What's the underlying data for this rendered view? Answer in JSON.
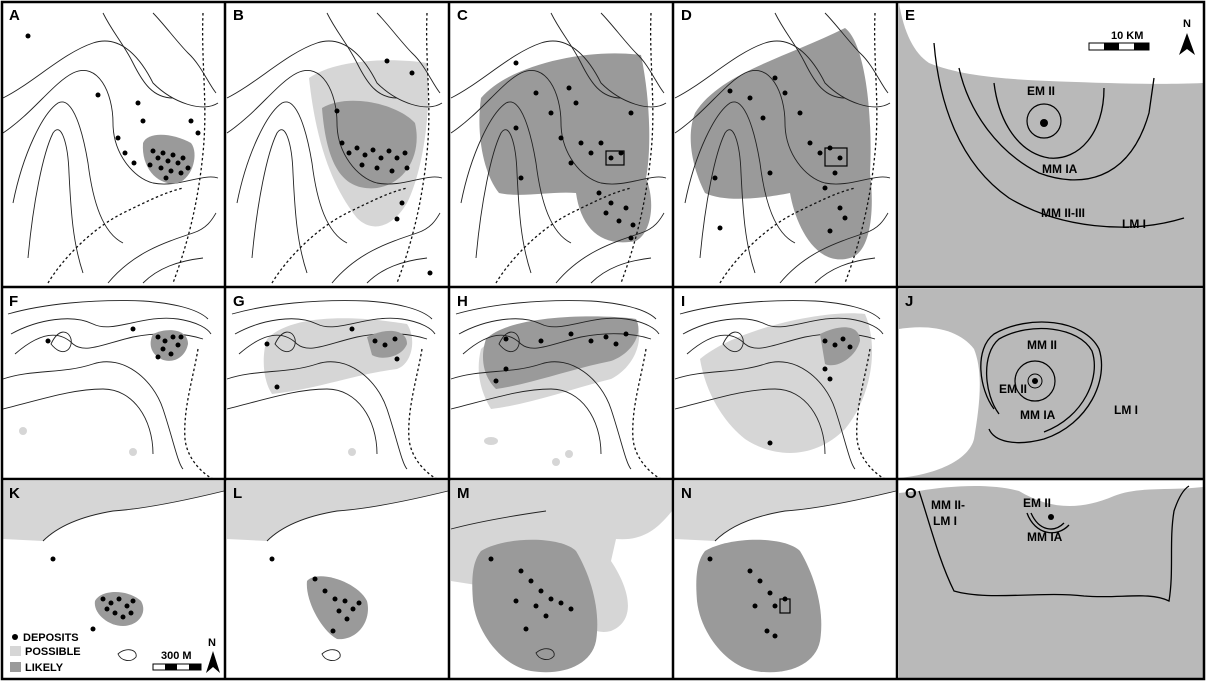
{
  "panels": {
    "A": "A",
    "B": "B",
    "C": "C",
    "D": "D",
    "E": "E",
    "F": "F",
    "G": "G",
    "H": "H",
    "I": "I",
    "J": "J",
    "K": "K",
    "L": "L",
    "M": "M",
    "N": "N",
    "O": "O"
  },
  "phases": {
    "E": [
      "EM II",
      "MM IA",
      "MM II-III",
      "LM I"
    ],
    "J": [
      "MM II",
      "EM II",
      "MM IA",
      "LM I"
    ],
    "O": [
      "MM II-",
      "LM I",
      "EM II",
      "MM IA"
    ]
  },
  "legend": {
    "deposits": "DEPOSITS",
    "possible": "POSSIBLE",
    "likely": "LIKELY"
  },
  "scales": {
    "large": "10 KM",
    "small": "300 M"
  },
  "north": "N",
  "colors": {
    "possible": "#d6d6d6",
    "likely": "#9a9a9a",
    "relief": "#b9b9b9"
  }
}
